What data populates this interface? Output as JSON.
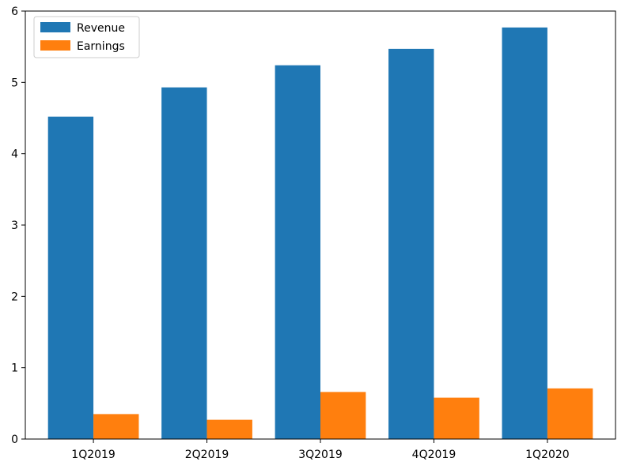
{
  "chart_data": {
    "type": "bar",
    "title": "",
    "xlabel": "",
    "ylabel": "",
    "categories": [
      "1Q2019",
      "2Q2019",
      "3Q2019",
      "4Q2019",
      "1Q2020"
    ],
    "series": [
      {
        "name": "Revenue",
        "color": "#1f77b4",
        "values": [
          4.52,
          4.93,
          5.24,
          5.47,
          5.77
        ]
      },
      {
        "name": "Earnings",
        "color": "#ff7f0e",
        "values": [
          0.35,
          0.27,
          0.66,
          0.58,
          0.71
        ]
      }
    ],
    "ylim": [
      0,
      6
    ],
    "yticks": [
      "0",
      "1",
      "2",
      "3",
      "4",
      "5",
      "6"
    ],
    "grid": false,
    "legend": {
      "position": "top-left",
      "entries": [
        "Revenue",
        "Earnings"
      ]
    }
  }
}
